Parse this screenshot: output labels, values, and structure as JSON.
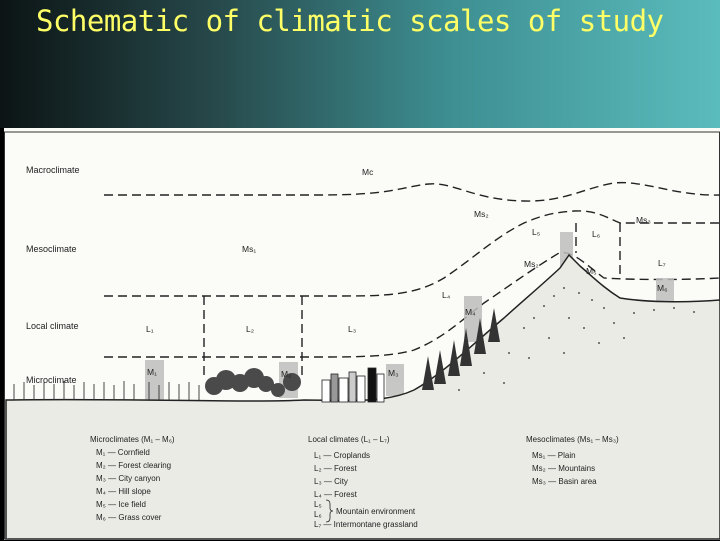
{
  "slide": {
    "title": "Schematic of climatic scales of study"
  },
  "scales": {
    "macro": "Macroclimate",
    "meso": "Mesoclimate",
    "local": "Local climate",
    "micro": "Microclimate"
  },
  "labels": {
    "mc": "Mc",
    "ms1": "Ms₁",
    "ms2": "Ms₂",
    "ms3": "Ms₃",
    "l1": "L₁",
    "l2": "L₂",
    "l3": "L₃",
    "l4": "L₄",
    "l5": "L₅",
    "l6": "L₆",
    "l7": "L₇",
    "m1": "M₁",
    "m2": "M₂",
    "m3": "M₃",
    "m4": "M₄",
    "m5": "M₅",
    "m6": "M₆"
  },
  "legend": {
    "micro": {
      "title": "Microclimates (M₁ – M₆)",
      "items": [
        "M₁ — Cornfield",
        "M₂ — Forest clearing",
        "M₃ — City canyon",
        "M₄ — Hill slope",
        "M₅ — Ice field",
        "M₆ — Grass cover"
      ]
    },
    "local": {
      "title": "Local climates (L₁ – L₇)",
      "items": [
        "L₁ — Croplands",
        "L₂ — Forest",
        "L₃ — City",
        "L₄ — Forest",
        "L₅",
        "L₆",
        "L₇ — Intermontane grassland"
      ],
      "group_label": "Mountain environment"
    },
    "meso": {
      "title": "Mesoclimates (Ms₁ – Ms₃)",
      "items": [
        "Ms₁ — Plain",
        "Ms₂ — Mountains",
        "Ms₃ — Basin area"
      ]
    }
  },
  "footer": {
    "mark": "."
  },
  "colors": {
    "title": "#ffff66",
    "line": "#222222",
    "panel": "#fbfbf8"
  }
}
